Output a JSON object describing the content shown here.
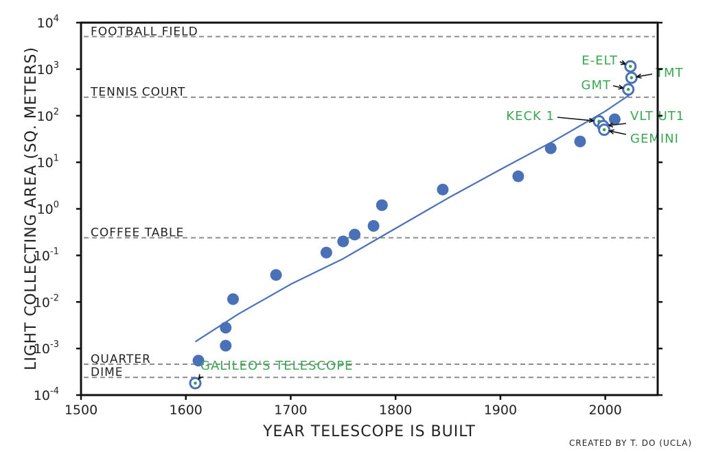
{
  "chart_data": {
    "type": "scatter",
    "title": "",
    "xlabel": "YEAR TELESCOPE IS BUILT",
    "ylabel": "LIGHT COLLECTING AREA (SQ. METERS)",
    "xlim": [
      1500,
      2050
    ],
    "ylim": [
      0.0001,
      10000
    ],
    "yscale": "log",
    "grid": false,
    "credit": "CREATED BY T. DO (UCLA)",
    "x_ticks": [
      {
        "value": 1500,
        "label": "1500"
      },
      {
        "value": 1600,
        "label": "1600"
      },
      {
        "value": 1700,
        "label": "1700"
      },
      {
        "value": 1800,
        "label": "1800"
      },
      {
        "value": 1900,
        "label": "1900"
      },
      {
        "value": 2000,
        "label": "2000"
      }
    ],
    "y_ticks": [
      {
        "exp": -4,
        "base": "10",
        "sup": "-4"
      },
      {
        "exp": -3,
        "base": "10",
        "sup": "-3"
      },
      {
        "exp": -2,
        "base": "10",
        "sup": "-2"
      },
      {
        "exp": -1,
        "base": "10",
        "sup": "-1"
      },
      {
        "exp": 0,
        "base": "10",
        "sup": "0"
      },
      {
        "exp": 1,
        "base": "10",
        "sup": "1"
      },
      {
        "exp": 2,
        "base": "10",
        "sup": "2"
      },
      {
        "exp": 3,
        "base": "10",
        "sup": "3"
      },
      {
        "exp": 4,
        "base": "10",
        "sup": "4"
      }
    ],
    "reference_lines": [
      {
        "label": "FOOTBALL FIELD",
        "y": 5000
      },
      {
        "label": "TENNIS COURT",
        "y": 250
      },
      {
        "label": "COFFEE TABLE",
        "y": 0.24
      },
      {
        "label": "QUARTER",
        "y": 0.00046
      },
      {
        "label": "DIME",
        "y": 0.00024
      }
    ],
    "series": [
      {
        "color": "#4a70b8",
        "points": [
          {
            "x": 1612,
            "y": 0.00055
          },
          {
            "x": 1638,
            "y": 0.0028
          },
          {
            "x": 1638,
            "y": 0.00115
          },
          {
            "x": 1645,
            "y": 0.0115
          },
          {
            "x": 1686,
            "y": 0.038
          },
          {
            "x": 1734,
            "y": 0.115
          },
          {
            "x": 1750,
            "y": 0.2
          },
          {
            "x": 1761,
            "y": 0.28
          },
          {
            "x": 1779,
            "y": 0.43
          },
          {
            "x": 1787,
            "y": 1.2
          },
          {
            "x": 1845,
            "y": 2.6
          },
          {
            "x": 1917,
            "y": 5.0
          },
          {
            "x": 1948,
            "y": 20
          },
          {
            "x": 1976,
            "y": 28
          },
          {
            "x": 2009,
            "y": 84
          }
        ]
      }
    ],
    "trend_line": {
      "color": "#4a70b8",
      "points": [
        {
          "x": 1609,
          "y": 0.0014
        },
        {
          "x": 1650,
          "y": 0.0055
        },
        {
          "x": 1700,
          "y": 0.024
        },
        {
          "x": 1750,
          "y": 0.085
        },
        {
          "x": 1800,
          "y": 0.38
        },
        {
          "x": 1850,
          "y": 1.7
        },
        {
          "x": 1900,
          "y": 7
        },
        {
          "x": 1950,
          "y": 28
        },
        {
          "x": 2000,
          "y": 125
        },
        {
          "x": 2025,
          "y": 300
        }
      ]
    },
    "annotations": [
      {
        "label": "GALILEO'S TELESCOPE",
        "x": 1609,
        "y": 0.00018,
        "color": "#3aa652"
      },
      {
        "label": "KECK 1",
        "x": 1994,
        "y": 76,
        "color": "#3aa652"
      },
      {
        "label": "VLT UT1",
        "x": 1998,
        "y": 60,
        "color": "#3aa652"
      },
      {
        "label": "GEMINI",
        "x": 1999,
        "y": 50,
        "color": "#3aa652"
      },
      {
        "label": "GMT",
        "x": 2022,
        "y": 368,
        "color": "#3aa652"
      },
      {
        "label": "TMT",
        "x": 2025,
        "y": 655,
        "color": "#3aa652"
      },
      {
        "label": "E-ELT",
        "x": 2024,
        "y": 1150,
        "color": "#3aa652"
      }
    ]
  }
}
